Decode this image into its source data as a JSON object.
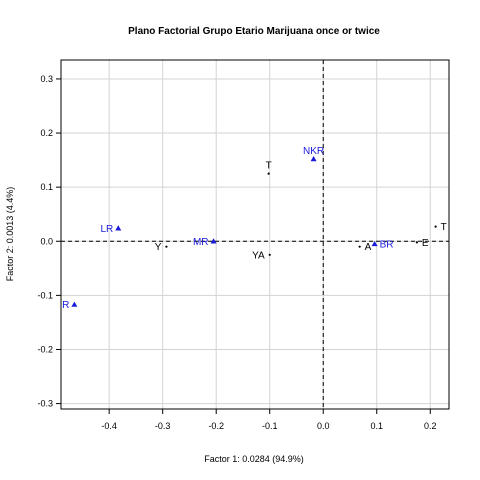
{
  "chart_data": {
    "type": "scatter",
    "title": "Plano Factorial Grupo Etario Marijuana once or twice",
    "xlabel": "Factor 1: 0.0284 (94.9%)",
    "ylabel": "Factor 2: 0.0013 (4.4%)",
    "xlim": [
      -0.49,
      0.235
    ],
    "ylim": [
      -0.31,
      0.335
    ],
    "x_ticks": [
      -0.4,
      -0.3,
      -0.2,
      -0.1,
      0.0,
      0.1,
      0.2
    ],
    "x_tick_labels": [
      "-0.4",
      "-0.3",
      "-0.2",
      "-0.1",
      "0.0",
      "0.1",
      "0.2"
    ],
    "y_ticks": [
      -0.3,
      -0.2,
      -0.1,
      0.0,
      0.1,
      0.2,
      0.3
    ],
    "y_tick_labels": [
      "-0.3",
      "-0.2",
      "-0.1",
      "0.0",
      "0.1",
      "0.2",
      "0.3"
    ],
    "grid": true,
    "series": [
      {
        "marker": "dot",
        "color": "#000000",
        "points": [
          {
            "label": "T",
            "x": -0.102,
            "y": 0.125,
            "label_pos": "above"
          },
          {
            "label": "Y",
            "x": -0.293,
            "y": -0.01,
            "label_pos": "left"
          },
          {
            "label": "YA",
            "x": -0.1,
            "y": -0.025,
            "label_pos": "left"
          },
          {
            "label": "A",
            "x": 0.068,
            "y": -0.01,
            "label_pos": "right"
          },
          {
            "label": "E",
            "x": 0.175,
            "y": -0.002,
            "label_pos": "right"
          },
          {
            "label": "T",
            "x": 0.21,
            "y": 0.027,
            "label_pos": "right"
          }
        ]
      },
      {
        "marker": "triangle",
        "color": "#1a1adb",
        "points": [
          {
            "label": "NKR",
            "x": -0.018,
            "y": 0.152,
            "label_pos": "above"
          },
          {
            "label": "LR",
            "x": -0.383,
            "y": 0.024,
            "label_pos": "left"
          },
          {
            "label": "MR",
            "x": -0.205,
            "y": 0.0,
            "label_pos": "left"
          },
          {
            "label": "BR",
            "x": 0.096,
            "y": -0.005,
            "label_pos": "right"
          },
          {
            "label": "R",
            "x": -0.465,
            "y": -0.117,
            "label_pos": "left"
          }
        ]
      }
    ]
  }
}
